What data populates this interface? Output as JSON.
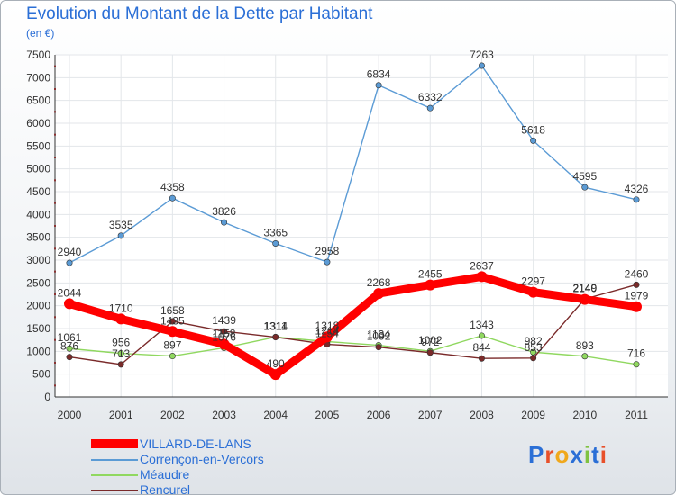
{
  "header": {
    "title": "Evolution du Montant de la Dette par Habitant",
    "subtitle": "(en €)"
  },
  "logo": {
    "text": "Proxiti",
    "colors": [
      "#2b6fd6",
      "#e8502a",
      "#f0a81c",
      "#2b6fd6",
      "#7fc241",
      "#2b6fd6",
      "#e8502a"
    ]
  },
  "chart_data": {
    "type": "line",
    "x": [
      "2000",
      "2001",
      "2002",
      "2003",
      "2004",
      "2005",
      "2006",
      "2007",
      "2008",
      "2009",
      "2010",
      "2011"
    ],
    "ylim": [
      0,
      7500
    ],
    "yticks": [
      0,
      500,
      1000,
      1500,
      2000,
      2500,
      3000,
      3500,
      4000,
      4500,
      5000,
      5500,
      6000,
      6500,
      7000,
      7500
    ],
    "grid": true,
    "legend_position": "bottom-left",
    "series": [
      {
        "name": "VILLARD-DE-LANS",
        "color": "#ff0000",
        "values": [
          2044,
          1710,
          1435,
          1158,
          490,
          1318,
          2268,
          2455,
          2637,
          2297,
          2140,
          1979
        ]
      },
      {
        "name": "Corrençon-en-Vercors",
        "color": "#5b9bd5",
        "values": [
          2940,
          3535,
          4358,
          3826,
          3365,
          2958,
          6834,
          6332,
          7263,
          5618,
          4595,
          4326
        ]
      },
      {
        "name": "Méaudre",
        "color": "#90d860",
        "values": [
          1061,
          956,
          897,
          1076,
          1314,
          1214,
          1134,
          1002,
          1343,
          982,
          893,
          716
        ]
      },
      {
        "name": "Rencurel",
        "color": "#7a2a2a",
        "values": [
          876,
          713,
          1658,
          1439,
          1311,
          1154,
          1092,
          972,
          844,
          853,
          2149,
          2460
        ]
      }
    ]
  }
}
